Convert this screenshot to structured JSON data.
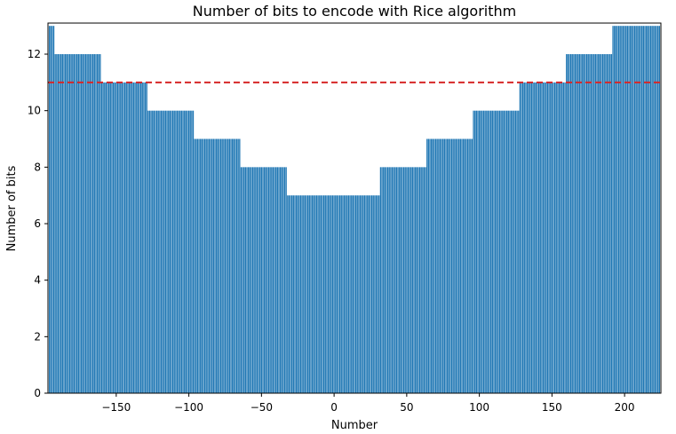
{
  "chart_data": {
    "type": "bar",
    "title": "Number of bits to encode with Rice algorithm",
    "xlabel": "Number",
    "ylabel": "Number of bits",
    "x_range": [
      -196,
      224
    ],
    "bar_width": 0.8,
    "series": [
      {
        "color": "#1f77b4",
        "segments": [
          {
            "x_from": -196,
            "x_to": -193,
            "value": 13
          },
          {
            "x_from": -192,
            "x_to": -161,
            "value": 12
          },
          {
            "x_from": -160,
            "x_to": -129,
            "value": 11
          },
          {
            "x_from": -128,
            "x_to": -97,
            "value": 10
          },
          {
            "x_from": -96,
            "x_to": -65,
            "value": 9
          },
          {
            "x_from": -64,
            "x_to": -33,
            "value": 8
          },
          {
            "x_from": -32,
            "x_to": 31,
            "value": 7
          },
          {
            "x_from": 32,
            "x_to": 63,
            "value": 8
          },
          {
            "x_from": 64,
            "x_to": 95,
            "value": 9
          },
          {
            "x_from": 96,
            "x_to": 127,
            "value": 10
          },
          {
            "x_from": 128,
            "x_to": 159,
            "value": 11
          },
          {
            "x_from": 160,
            "x_to": 191,
            "value": 12
          },
          {
            "x_from": 192,
            "x_to": 224,
            "value": 13
          }
        ]
      }
    ],
    "reference_line": {
      "y": 11,
      "style": "dashed",
      "color": "#d62728"
    },
    "xlim": [
      -197,
      225
    ],
    "ylim": [
      0,
      13.1
    ],
    "xticks": [
      -150,
      -100,
      -50,
      0,
      50,
      100,
      150,
      200
    ],
    "xtick_labels": [
      "−150",
      "−100",
      "−50",
      "0",
      "50",
      "100",
      "150",
      "200"
    ],
    "yticks": [
      0,
      2,
      4,
      6,
      8,
      10,
      12
    ],
    "ytick_labels": [
      "0",
      "2",
      "4",
      "6",
      "8",
      "10",
      "12"
    ],
    "grid": false,
    "legend": "none"
  }
}
